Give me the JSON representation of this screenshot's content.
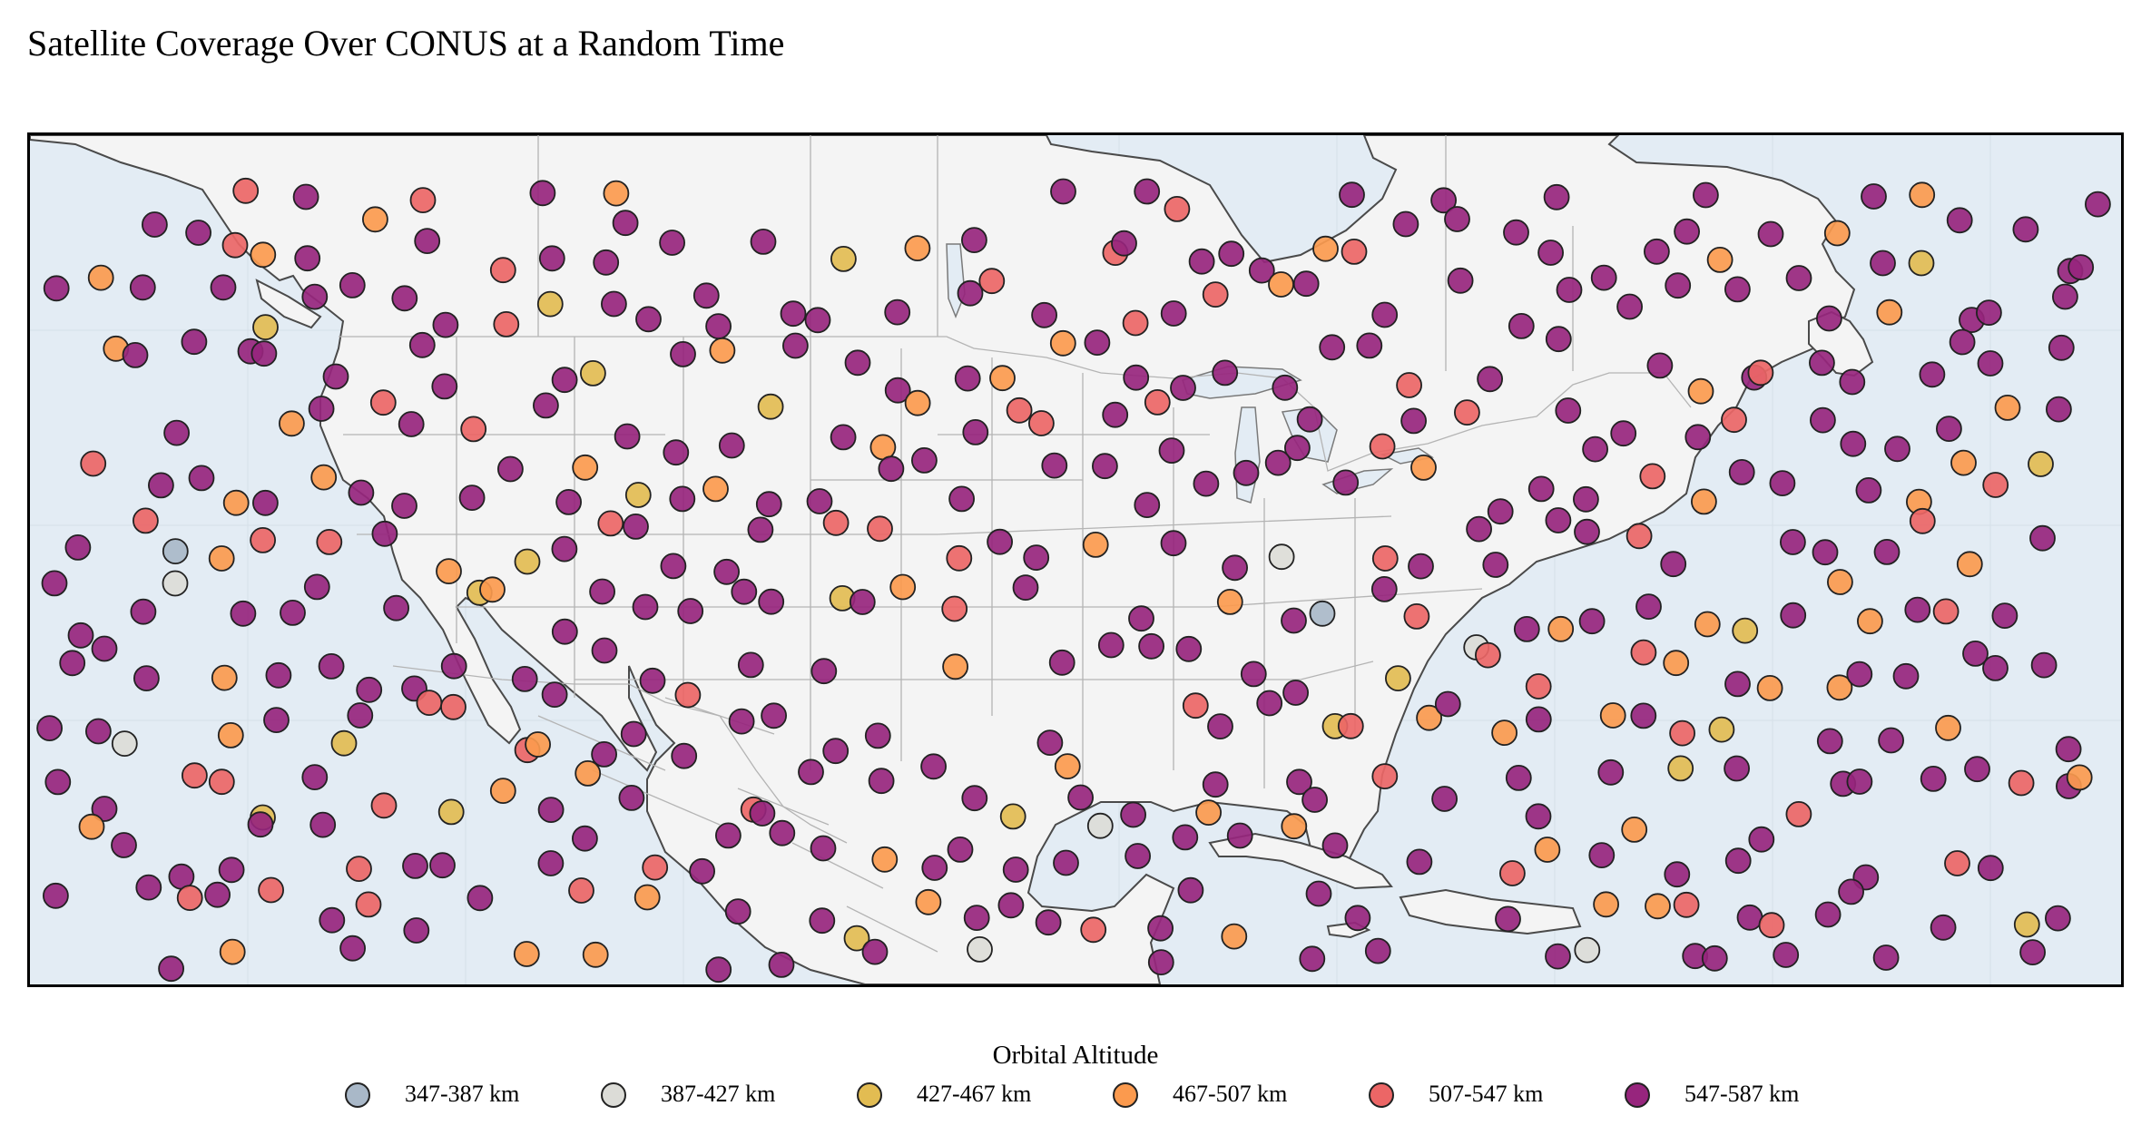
{
  "title": "Satellite Coverage Over CONUS at a Random Time",
  "map": {
    "ocean_color": "#e3ecf4",
    "land_color": "#f4f4f4",
    "coast_color": "#4a4a4a",
    "border_color": "#b4b4b4",
    "marker_edge_color": "#222222"
  },
  "legend": {
    "title": "Orbital Altitude",
    "items": [
      {
        "label": "347-387 km",
        "color": "#a9b8c8"
      },
      {
        "label": "387-427 km",
        "color": "#dcdcd7"
      },
      {
        "label": "427-467 km",
        "color": "#e2bc52"
      },
      {
        "label": "467-507 km",
        "color": "#fb9a4e"
      },
      {
        "label": "507-547 km",
        "color": "#ec6666"
      },
      {
        "label": "547-587 km",
        "color": "#97257d"
      }
    ]
  }
}
